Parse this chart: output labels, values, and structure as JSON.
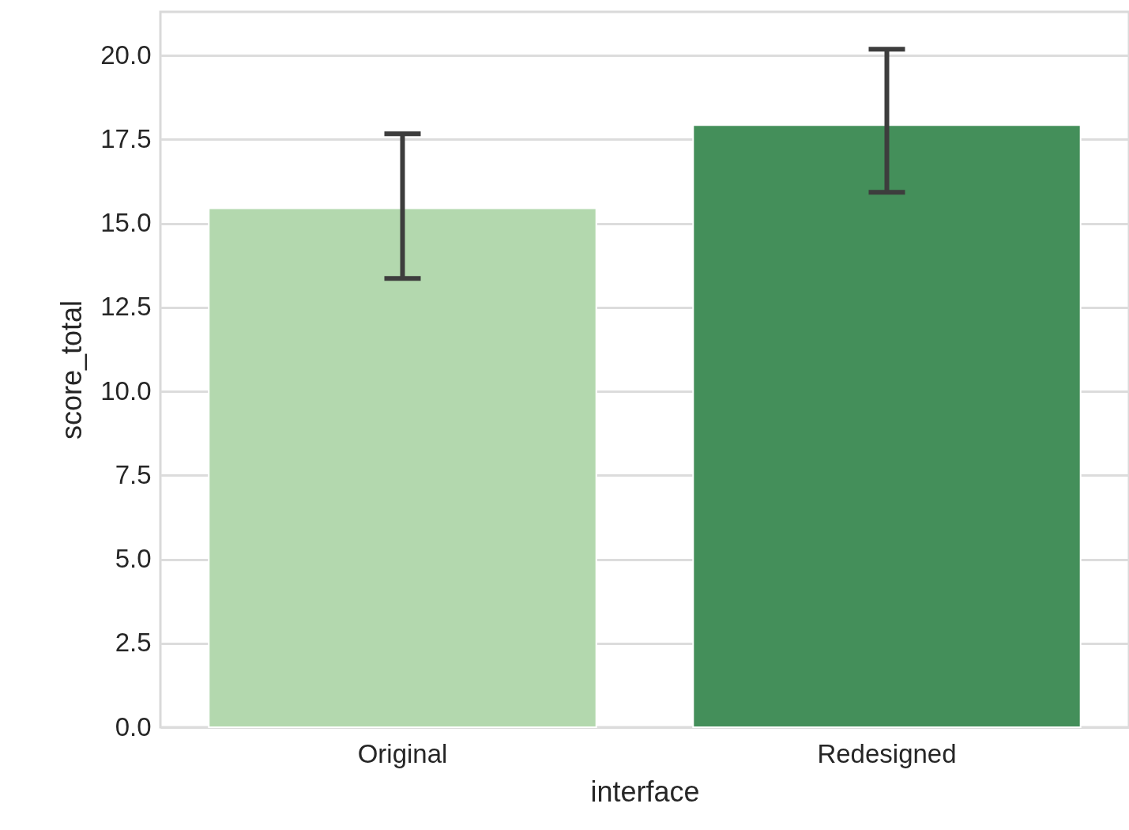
{
  "chart_data": {
    "type": "bar",
    "xlabel": "interface",
    "ylabel": "score_total",
    "categories": [
      "Original",
      "Redesigned"
    ],
    "values": [
      15.45,
      17.93
    ],
    "colors": [
      "#b3d8ae",
      "#448f5a"
    ],
    "errors": [
      [
        13.36,
        17.67
      ],
      [
        15.93,
        20.19
      ]
    ],
    "ylim": [
      0,
      21.3
    ],
    "yticks": [
      {
        "value": 0,
        "label": "0.0"
      },
      {
        "value": 2.5,
        "label": "2.5"
      },
      {
        "value": 5,
        "label": "5.0"
      },
      {
        "value": 7.5,
        "label": "7.5"
      },
      {
        "value": 10,
        "label": "10.0"
      },
      {
        "value": 12.5,
        "label": "12.5"
      },
      {
        "value": 15,
        "label": "15.0"
      },
      {
        "value": 17.5,
        "label": "17.5"
      },
      {
        "value": 20,
        "label": "20.0"
      }
    ],
    "grid": "y"
  }
}
